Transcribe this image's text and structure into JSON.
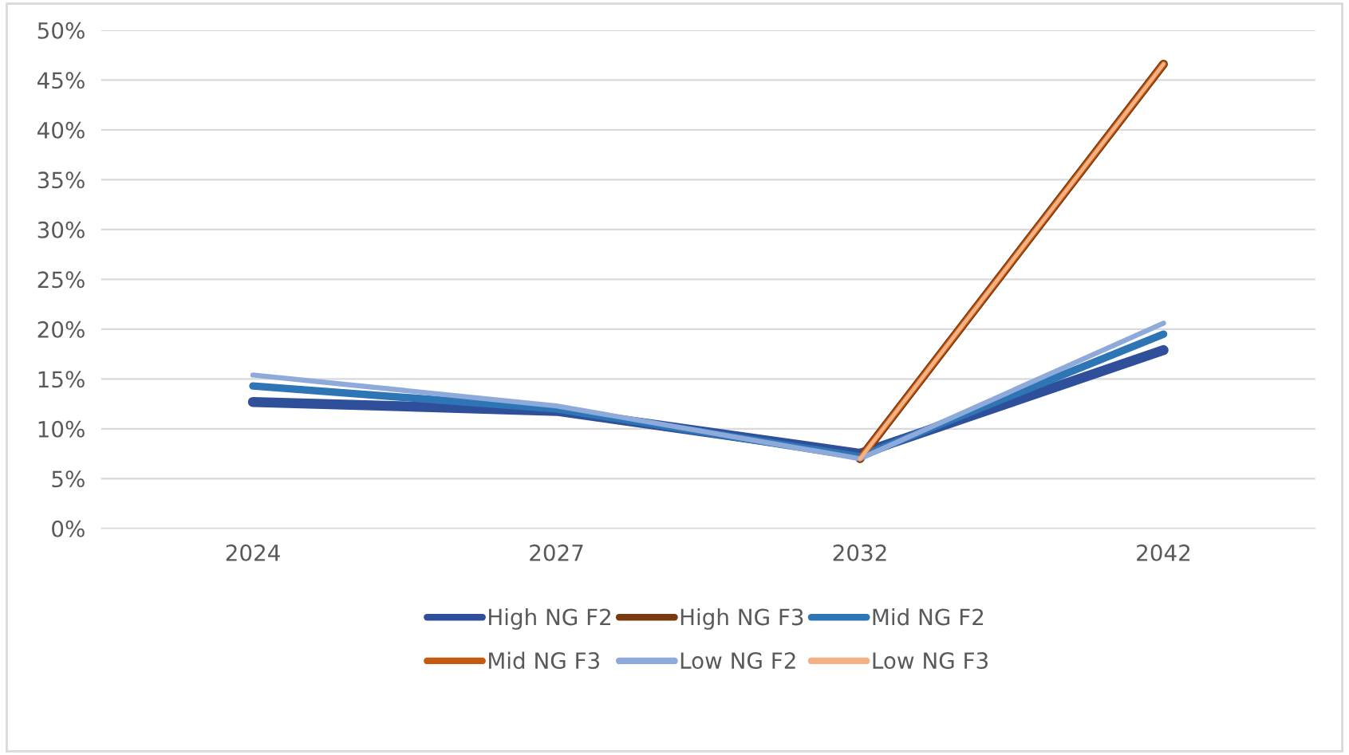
{
  "chart_data": {
    "type": "line",
    "categories": [
      "2024",
      "2027",
      "2032",
      "2042"
    ],
    "ylim": [
      0,
      50
    ],
    "yticks": [
      {
        "value": 0,
        "label": "0%"
      },
      {
        "value": 5,
        "label": "5%"
      },
      {
        "value": 10,
        "label": "10%"
      },
      {
        "value": 15,
        "label": "15%"
      },
      {
        "value": 20,
        "label": "20%"
      },
      {
        "value": 25,
        "label": "25%"
      },
      {
        "value": 30,
        "label": "30%"
      },
      {
        "value": 35,
        "label": "35%"
      },
      {
        "value": 40,
        "label": "40%"
      },
      {
        "value": 45,
        "label": "45%"
      },
      {
        "value": 50,
        "label": "50%"
      }
    ],
    "grid": "y",
    "legend": "bottom",
    "marker": "none",
    "line_style": "solid",
    "series": [
      {
        "name": "High NG F2",
        "color": "#2f4f9a",
        "values": [
          12.7,
          11.8,
          7.5,
          17.9
        ]
      },
      {
        "name": "High NG F3",
        "color": "#7a3a10",
        "values": [
          null,
          null,
          7.0,
          46.6
        ]
      },
      {
        "name": "Mid NG F2",
        "color": "#2e75b6",
        "values": [
          14.3,
          12.0,
          7.2,
          19.5
        ]
      },
      {
        "name": "Mid NG F3",
        "color": "#c55a11",
        "values": [
          null,
          null,
          7.0,
          46.6
        ]
      },
      {
        "name": "Low NG F2",
        "color": "#8eaadb",
        "values": [
          15.4,
          12.3,
          7.0,
          20.6
        ]
      },
      {
        "name": "Low NG F3",
        "color": "#f4b183",
        "values": [
          null,
          null,
          7.0,
          46.6
        ]
      }
    ]
  }
}
